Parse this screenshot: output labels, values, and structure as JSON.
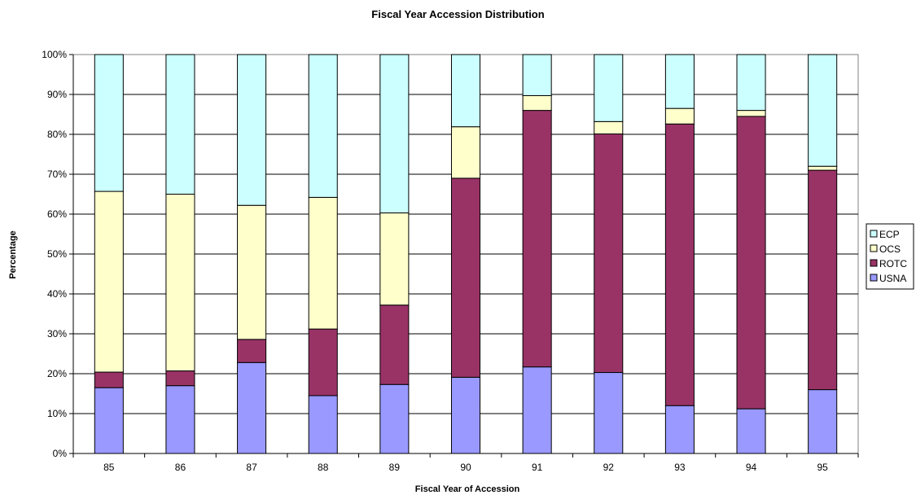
{
  "chart_data": {
    "type": "bar",
    "stacked": true,
    "title": "Fiscal Year Accession Distribution",
    "xlabel": "Fiscal Year of Accession",
    "ylabel": "Percentage",
    "categories": [
      "85",
      "86",
      "87",
      "88",
      "89",
      "90",
      "91",
      "92",
      "93",
      "94",
      "95"
    ],
    "series": [
      {
        "name": "USNA",
        "color": "#9999FF",
        "values": [
          16.5,
          17.0,
          22.8,
          14.5,
          17.3,
          19.1,
          21.7,
          20.3,
          12.0,
          11.2,
          16.0
        ]
      },
      {
        "name": "ROTC",
        "color": "#993366",
        "values": [
          3.9,
          3.7,
          5.8,
          16.7,
          19.9,
          49.9,
          64.3,
          59.8,
          70.6,
          73.3,
          55.0
        ]
      },
      {
        "name": "OCS",
        "color": "#FFFFCC",
        "values": [
          45.3,
          44.3,
          33.6,
          33.0,
          23.1,
          12.9,
          3.7,
          3.1,
          3.9,
          1.5,
          1.0
        ]
      },
      {
        "name": "ECP",
        "color": "#CCFFFF",
        "values": [
          34.3,
          35.0,
          37.8,
          35.8,
          39.7,
          18.1,
          10.3,
          16.8,
          13.5,
          14.0,
          28.0
        ]
      }
    ],
    "ylim": [
      0,
      100
    ],
    "yticks": [
      "0%",
      "10%",
      "20%",
      "30%",
      "40%",
      "50%",
      "60%",
      "70%",
      "80%",
      "90%",
      "100%"
    ],
    "grid": true,
    "legend_position": "right",
    "legend_order": [
      "ECP",
      "OCS",
      "ROTC",
      "USNA"
    ]
  }
}
